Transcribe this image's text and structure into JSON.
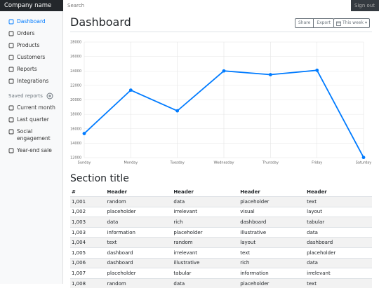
{
  "navbar": {
    "brand": "Company name",
    "search_placeholder": "Search",
    "sign_out": "Sign out"
  },
  "sidebar": {
    "nav": [
      "Dashboard",
      "Orders",
      "Products",
      "Customers",
      "Reports",
      "Integrations"
    ],
    "saved_reports_heading": "Saved reports",
    "saved_reports": [
      "Current month",
      "Last quarter",
      "Social engagement",
      "Year-end sale"
    ]
  },
  "header": {
    "title": "Dashboard",
    "buttons": [
      "Share",
      "Export"
    ],
    "period": "This week"
  },
  "chart_data": {
    "type": "line",
    "categories": [
      "Sunday",
      "Monday",
      "Tuesday",
      "Wednesday",
      "Thursday",
      "Friday",
      "Saturday"
    ],
    "values": [
      15339,
      21345,
      18483,
      24003,
      23489,
      24092,
      12034
    ],
    "color": "#007bff",
    "ylim": [
      12000,
      28000
    ],
    "yticks": [
      12000,
      14000,
      16000,
      18000,
      20000,
      22000,
      24000,
      26000,
      28000
    ],
    "grid": true
  },
  "section": {
    "title": "Section title"
  },
  "table": {
    "headers": [
      "#",
      "Header",
      "Header",
      "Header",
      "Header"
    ],
    "rows": [
      [
        "1,001",
        "random",
        "data",
        "placeholder",
        "text"
      ],
      [
        "1,002",
        "placeholder",
        "irrelevant",
        "visual",
        "layout"
      ],
      [
        "1,003",
        "data",
        "rich",
        "dashboard",
        "tabular"
      ],
      [
        "1,003",
        "information",
        "placeholder",
        "illustrative",
        "data"
      ],
      [
        "1,004",
        "text",
        "random",
        "layout",
        "dashboard"
      ],
      [
        "1,005",
        "dashboard",
        "irrelevant",
        "text",
        "placeholder"
      ],
      [
        "1,006",
        "dashboard",
        "illustrative",
        "rich",
        "data"
      ],
      [
        "1,007",
        "placeholder",
        "tabular",
        "information",
        "irrelevant"
      ],
      [
        "1,008",
        "random",
        "data",
        "placeholder",
        "text"
      ]
    ]
  }
}
